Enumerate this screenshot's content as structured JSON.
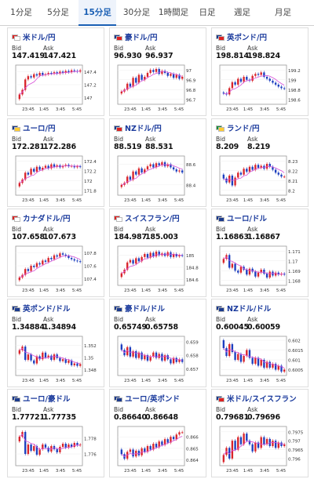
{
  "tabs": [
    {
      "label": "1分足",
      "active": false
    },
    {
      "label": "5分足",
      "active": false
    },
    {
      "label": "15分足",
      "active": true
    },
    {
      "label": "30分足",
      "active": false
    },
    {
      "label": "1時間足",
      "active": false
    },
    {
      "label": "日足",
      "active": false
    },
    {
      "label": "週足",
      "active": false
    },
    {
      "label": "月足",
      "active": false
    }
  ],
  "labels": {
    "bid": "Bid",
    "ask": "Ask"
  },
  "colors": {
    "up": "#d9252b",
    "down": "#1d3fbf",
    "ma": "#d84fd8",
    "title": "#1a3a9c",
    "active_tab": "#1a5fb4"
  },
  "pairs": [
    {
      "name": "米ドル/円",
      "flag": [
        "#d22",
        "#fff"
      ],
      "bid": "147.419",
      "ask": "147.421",
      "yticks": [
        "147.4",
        "147.2",
        "147"
      ],
      "ylim": [
        146.9,
        147.5
      ],
      "x_labels": [
        "23:45",
        "1:45",
        "3:45",
        "5:45"
      ],
      "closes": [
        147.05,
        147.12,
        147.28,
        147.33,
        147.31,
        147.36,
        147.34,
        147.38,
        147.35,
        147.36,
        147.38,
        147.37,
        147.39,
        147.37,
        147.4,
        147.38,
        147.41,
        147.39,
        147.42,
        147.41,
        147.4,
        147.42
      ]
    },
    {
      "name": "豪ドル/円",
      "flag": [
        "#1b3a8c",
        "#d22"
      ],
      "bid": "96.930",
      "ask": "96.937",
      "yticks": [
        "97",
        "96.9",
        "96.8",
        "96.7"
      ],
      "ylim": [
        96.65,
        97.05
      ],
      "x_labels": [
        "23:45",
        "1:45",
        "3:45",
        "5:45"
      ],
      "closes": [
        96.78,
        96.8,
        96.86,
        96.83,
        96.92,
        96.87,
        96.95,
        96.9,
        96.93,
        96.97,
        97.0,
        96.98,
        97.01,
        96.96,
        96.99,
        96.97,
        96.94,
        96.96,
        96.92,
        96.95,
        96.91,
        96.93
      ]
    },
    {
      "name": "英ポンド/円",
      "flag": [
        "#1b3a8c",
        "#d22"
      ],
      "bid": "198.814",
      "ask": "198.824",
      "yticks": [
        "199.2",
        "199",
        "198.8",
        "198.6"
      ],
      "ylim": [
        198.5,
        199.3
      ],
      "x_labels": [
        "23:45",
        "1:45",
        "3:45",
        "5:45"
      ],
      "closes": [
        198.72,
        198.7,
        198.83,
        198.95,
        198.9,
        199.02,
        198.96,
        199.06,
        199.0,
        198.98,
        199.08,
        199.12,
        199.1,
        199.15,
        199.06,
        199.02,
        198.98,
        198.94,
        198.9,
        198.86,
        198.83,
        198.82
      ]
    },
    {
      "name": "ユーロ/円",
      "flag": [
        "#1b3a8c",
        "#fc3"
      ],
      "bid": "172.281",
      "ask": "172.286",
      "yticks": [
        "172.4",
        "172.2",
        "172",
        "171.8"
      ],
      "ylim": [
        171.7,
        172.5
      ],
      "x_labels": [
        "23:45",
        "1:45",
        "3:45",
        "5:45"
      ],
      "closes": [
        171.95,
        172.02,
        172.16,
        172.12,
        172.24,
        172.18,
        172.28,
        172.22,
        172.26,
        172.3,
        172.25,
        172.33,
        172.28,
        172.31,
        172.27,
        172.3,
        172.32,
        172.29,
        172.3,
        172.27,
        172.29,
        172.28
      ]
    },
    {
      "name": "NZドル/円",
      "flag": [
        "#1b3a8c",
        "#d22"
      ],
      "bid": "88.519",
      "ask": "88.531",
      "yticks": [
        "88.6",
        "88.4"
      ],
      "ylim": [
        88.3,
        88.68
      ],
      "x_labels": [
        "23:45",
        "1:45",
        "3:45",
        "5:45"
      ],
      "closes": [
        88.4,
        88.42,
        88.48,
        88.45,
        88.53,
        88.5,
        88.56,
        88.52,
        88.55,
        88.58,
        88.6,
        88.57,
        88.61,
        88.59,
        88.62,
        88.58,
        88.6,
        88.57,
        88.55,
        88.53,
        88.54,
        88.52
      ]
    },
    {
      "name": "ランド/円",
      "flag": [
        "#1a8c3a",
        "#fc3"
      ],
      "bid": "8.209",
      "ask": "8.219",
      "yticks": [
        "8.23",
        "8.22",
        "8.21",
        "8.2"
      ],
      "ylim": [
        8.195,
        8.235
      ],
      "x_labels": [
        "23:45",
        "1:45",
        "3:45",
        "5:45"
      ],
      "closes": [
        8.212,
        8.208,
        8.215,
        8.205,
        8.213,
        8.218,
        8.216,
        8.222,
        8.219,
        8.224,
        8.221,
        8.226,
        8.223,
        8.225,
        8.222,
        8.227,
        8.224,
        8.221,
        8.218,
        8.216,
        8.214,
        8.214
      ]
    },
    {
      "name": "カナダドル/円",
      "flag": [
        "#d22",
        "#fff"
      ],
      "bid": "107.658",
      "ask": "107.673",
      "yticks": [
        "107.8",
        "107.6",
        "107.4"
      ],
      "ylim": [
        107.3,
        107.9
      ],
      "x_labels": [
        "23:45",
        "1:45",
        "3:45",
        "5:45"
      ],
      "closes": [
        107.42,
        107.46,
        107.55,
        107.52,
        107.6,
        107.58,
        107.64,
        107.62,
        107.68,
        107.66,
        107.72,
        107.7,
        107.76,
        107.74,
        107.79,
        107.77,
        107.75,
        107.72,
        107.7,
        107.68,
        107.67,
        107.66
      ]
    },
    {
      "name": "スイスフラン/円",
      "flag": [
        "#d22",
        "#fff"
      ],
      "bid": "184.987",
      "ask": "185.003",
      "yticks": [
        "185",
        "184.8",
        "184.6"
      ],
      "ylim": [
        184.5,
        185.15
      ],
      "x_labels": [
        "23:45",
        "1:45",
        "3:45",
        "5:45"
      ],
      "closes": [
        184.7,
        184.76,
        184.88,
        184.92,
        184.86,
        184.95,
        184.9,
        184.97,
        185.02,
        184.96,
        185.04,
        184.98,
        185.06,
        185.0,
        185.03,
        184.99,
        185.05,
        184.97,
        185.02,
        184.98,
        185.0,
        184.99
      ]
    },
    {
      "name": "ユーロ/ドル",
      "flag": [
        "#1b3a8c",
        "#1b3a8c"
      ],
      "bid": "1.16863",
      "ask": "1.16867",
      "yticks": [
        "1.171",
        "1.17",
        "1.169",
        "1.168"
      ],
      "ylim": [
        1.1675,
        1.1715
      ],
      "x_labels": [
        "23:45",
        "1:45",
        "3:45",
        "5:45"
      ],
      "closes": [
        1.1702,
        1.1706,
        1.1693,
        1.1697,
        1.169,
        1.1688,
        1.1694,
        1.1691,
        1.1686,
        1.1692,
        1.1689,
        1.1684,
        1.1688,
        1.1691,
        1.1687,
        1.1683,
        1.1689,
        1.1685,
        1.1688,
        1.1686,
        1.1687,
        1.1686
      ]
    },
    {
      "name": "英ポンド/ドル",
      "flag": [
        "#1b3a8c",
        "#1b3a8c"
      ],
      "bid": "1.34884",
      "ask": "1.34894",
      "yticks": [
        "1.352",
        "1.35",
        "1.348"
      ],
      "ylim": [
        1.347,
        1.3535
      ],
      "x_labels": [
        "23:45",
        "1:45",
        "3:45",
        "5:45"
      ],
      "closes": [
        1.3512,
        1.3518,
        1.3496,
        1.3505,
        1.3495,
        1.349,
        1.3502,
        1.3497,
        1.3508,
        1.35,
        1.3503,
        1.3496,
        1.3505,
        1.3499,
        1.3494,
        1.3497,
        1.3491,
        1.3495,
        1.3487,
        1.349,
        1.3486,
        1.3489
      ]
    },
    {
      "name": "豪ドル/ドル",
      "flag": [
        "#1b3a8c",
        "#1b3a8c"
      ],
      "bid": "0.65749",
      "ask": "0.65758",
      "yticks": [
        "0.659",
        "0.658",
        "0.657"
      ],
      "ylim": [
        0.6565,
        0.6594
      ],
      "x_labels": [
        "23:45",
        "1:45",
        "3:45",
        "5:45"
      ],
      "closes": [
        0.6584,
        0.658,
        0.6586,
        0.6579,
        0.6583,
        0.6578,
        0.6582,
        0.6577,
        0.658,
        0.6576,
        0.6579,
        0.6582,
        0.6578,
        0.6581,
        0.6576,
        0.658,
        0.6577,
        0.6574,
        0.6578,
        0.6575,
        0.6577,
        0.6575
      ]
    },
    {
      "name": "NZドル/ドル",
      "flag": [
        "#1b3a8c",
        "#1b3a8c"
      ],
      "bid": "0.60045",
      "ask": "0.60059",
      "yticks": [
        "0.602",
        "0.6015",
        "0.601",
        "0.6005"
      ],
      "ylim": [
        0.6002,
        0.6022
      ],
      "x_labels": [
        "23:45",
        "1:45",
        "3:45",
        "5:45"
      ],
      "closes": [
        0.6016,
        0.6012,
        0.6018,
        0.6014,
        0.601,
        0.6013,
        0.6009,
        0.6012,
        0.6015,
        0.6011,
        0.6008,
        0.6011,
        0.6007,
        0.601,
        0.6006,
        0.6009,
        0.6006,
        0.6008,
        0.6005,
        0.6007,
        0.6004,
        0.6005
      ]
    },
    {
      "name": "ユーロ/豪ドル",
      "flag": [
        "#1b3a8c",
        "#1b3a8c"
      ],
      "bid": "1.77721",
      "ask": "1.77735",
      "yticks": [
        "1.778",
        "1.776"
      ],
      "ylim": [
        1.7745,
        1.7795
      ],
      "x_labels": [
        "23:45",
        "1:45",
        "3:45",
        "5:45"
      ],
      "closes": [
        1.7782,
        1.7788,
        1.776,
        1.7772,
        1.7764,
        1.777,
        1.7759,
        1.7766,
        1.7772,
        1.7768,
        1.7763,
        1.777,
        1.7766,
        1.7762,
        1.7769,
        1.7773,
        1.7768,
        1.7772,
        1.7769,
        1.7774,
        1.7771,
        1.7772
      ]
    },
    {
      "name": "ユーロ/英ポンド",
      "flag": [
        "#1b3a8c",
        "#1b3a8c"
      ],
      "bid": "0.86640",
      "ask": "0.86648",
      "yticks": [
        "0.866",
        "0.865",
        "0.864"
      ],
      "ylim": [
        0.8635,
        0.8669
      ],
      "x_labels": [
        "23:45",
        "1:45",
        "3:45",
        "5:45"
      ],
      "closes": [
        0.8645,
        0.8641,
        0.8647,
        0.8649,
        0.8643,
        0.8648,
        0.8644,
        0.865,
        0.8647,
        0.8652,
        0.8649,
        0.8654,
        0.8651,
        0.8656,
        0.8653,
        0.8658,
        0.8655,
        0.866,
        0.8658,
        0.8662,
        0.8664,
        0.8664
      ]
    },
    {
      "name": "米ドル/スイスフラン",
      "flag": [
        "#1b3a8c",
        "#d22"
      ],
      "bid": "0.79681",
      "ask": "0.79696",
      "yticks": [
        "0.7975",
        "0.797",
        "0.7965",
        "0.796"
      ],
      "ylim": [
        0.7956,
        0.7978
      ],
      "x_labels": [
        "23:45",
        "1:45",
        "3:45",
        "5:45"
      ],
      "closes": [
        0.7962,
        0.7966,
        0.796,
        0.797,
        0.7965,
        0.7972,
        0.7968,
        0.7974,
        0.797,
        0.7968,
        0.7964,
        0.7969,
        0.7966,
        0.7972,
        0.7968,
        0.7971,
        0.7967,
        0.797,
        0.7966,
        0.7969,
        0.7967,
        0.7968
      ]
    }
  ]
}
